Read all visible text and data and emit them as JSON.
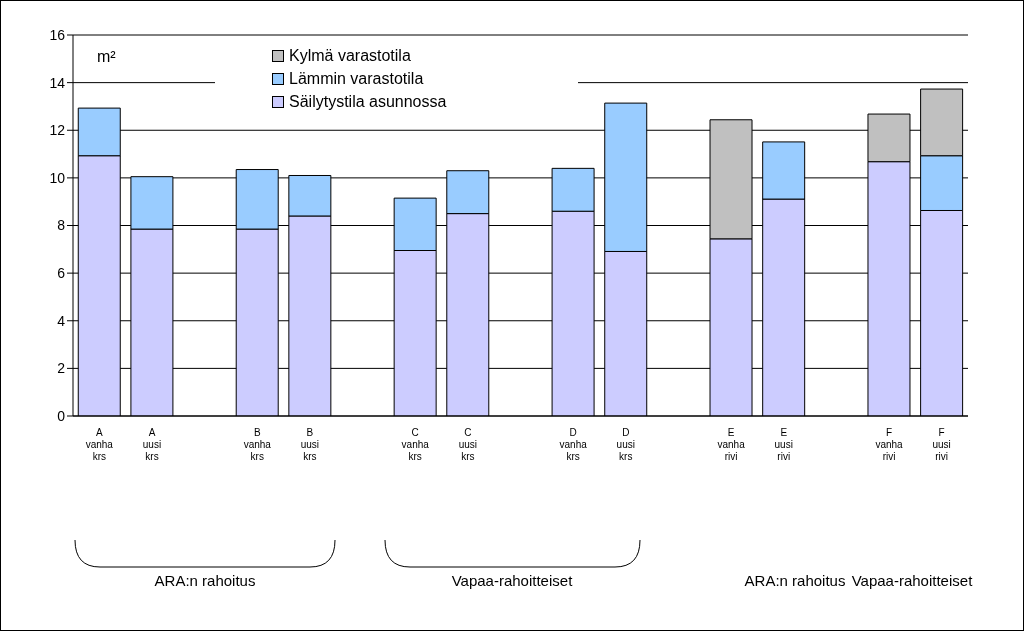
{
  "chart_data": {
    "type": "bar",
    "stacked": true,
    "ylabel": "m²",
    "categories": [
      "A\nvanha\nkrs",
      "A\nuusi\nkrs",
      null,
      "B\nvanha\nkrs",
      "B\nuusi\nkrs",
      null,
      "C\nvanha\nkrs",
      "C\nuusi\nkrs",
      null,
      "D\nvanha\nkrs",
      "D\nuusi\nkrs",
      null,
      "E\nvanha\nrivi",
      "E\nuusi\nrivi",
      null,
      "F\nvanha\nrivi",
      "F\nuusi\nrivi"
    ],
    "series": [
      {
        "name": "Säilytystila asunnossa",
        "color": "#ccccff",
        "values": [
          10.93,
          7.85,
          null,
          7.85,
          8.4,
          null,
          6.95,
          8.5,
          null,
          8.6,
          6.91,
          null,
          7.44,
          9.11,
          null,
          10.68,
          8.63
        ]
      },
      {
        "name": "Lämmin varastotila",
        "color": "#99ccff",
        "values": [
          2.0,
          2.2,
          null,
          2.5,
          1.7,
          null,
          2.2,
          1.8,
          null,
          1.8,
          6.23,
          null,
          null,
          2.4,
          null,
          null,
          2.3
        ]
      },
      {
        "name": "Kylmä varastotila",
        "color": "#c0c0c0",
        "values": [
          null,
          null,
          null,
          null,
          null,
          null,
          null,
          null,
          null,
          null,
          null,
          null,
          5.0,
          null,
          null,
          2.0,
          2.8
        ]
      }
    ],
    "ylim": [
      0,
      16
    ],
    "yticks": [
      0,
      2,
      4,
      6,
      8,
      10,
      12,
      14,
      16
    ],
    "grid": "y",
    "legend": "top",
    "annotations": [
      "ARA:n rahoitus",
      "Vapaa-rahoitteiset",
      "ARA:n rahoitus",
      "Vapaa-rahoitteiset"
    ]
  }
}
